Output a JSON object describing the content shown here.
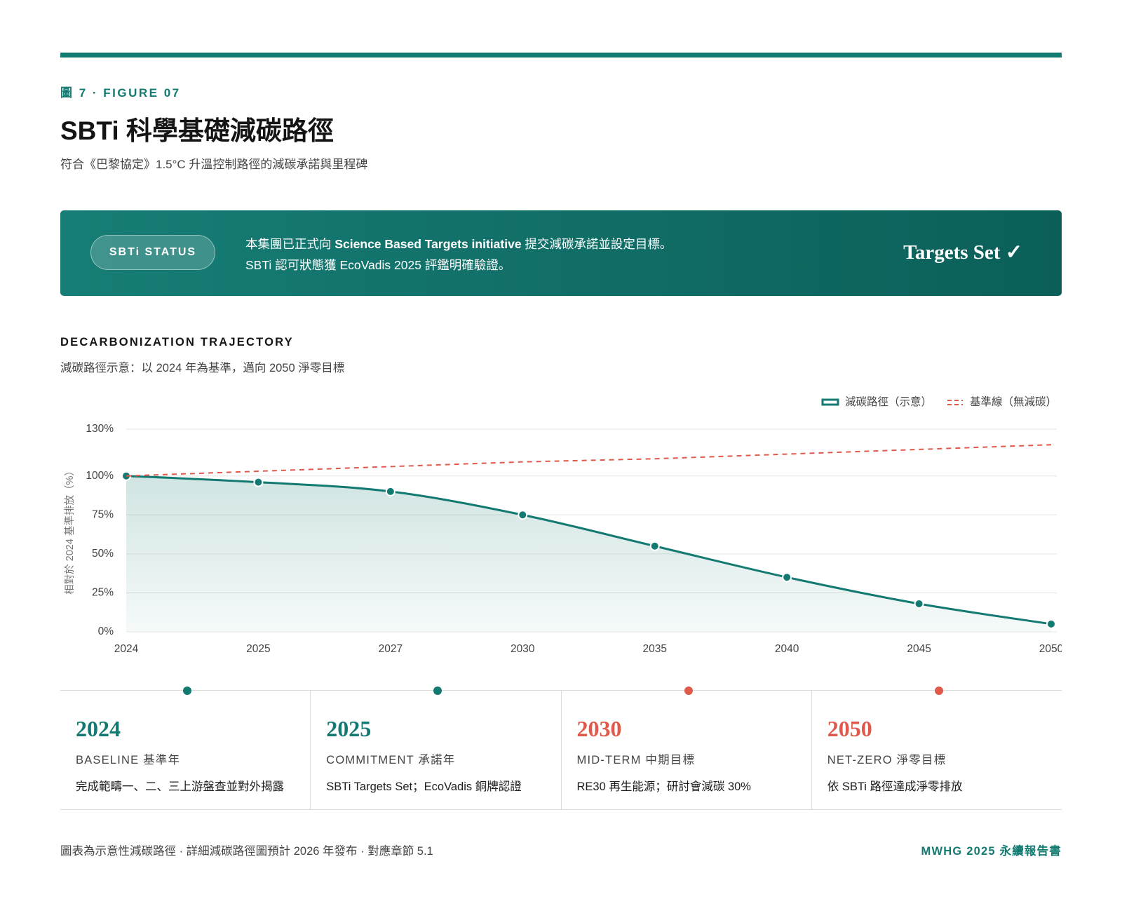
{
  "header": {
    "figure_label": "圖 7 · FIGURE 07",
    "title": "SBTi 科學基礎減碳路徑",
    "subtitle": "符合《巴黎協定》1.5°C 升溫控制路徑的減碳承諾與里程碑"
  },
  "banner": {
    "badge": "SBTi STATUS",
    "line1": [
      "本集團已正式向 ",
      "Science Based Targets initiative",
      " 提交減碳承諾並設定目標。"
    ],
    "line2": "SBTi 認可狀態獲 EcoVadis 2025 評鑑明確驗證。",
    "status": "Targets Set ✓"
  },
  "section": {
    "title": "DECARBONIZATION TRAJECTORY",
    "subtitle": "減碳路徑示意：以 2024 年為基準，邁向 2050 淨零目標"
  },
  "chart_data": {
    "type": "line",
    "y_label": "相對於 2024 基準排放（%）",
    "categories": [
      "2024",
      "2025",
      "2027",
      "2030",
      "2035",
      "2040",
      "2045",
      "2050"
    ],
    "series": [
      {
        "name": "減碳路徑（示意）",
        "color": "#137a72",
        "style": "solid",
        "values": [
          100,
          96,
          90,
          75,
          55,
          35,
          18,
          5
        ]
      },
      {
        "name": "基準線（無減碳）",
        "color": "#e05a4c",
        "style": "dashed",
        "values": [
          100,
          103,
          106,
          109,
          111,
          114,
          117,
          120
        ]
      }
    ],
    "ylim": [
      0,
      130
    ],
    "yticks": [
      {
        "value": 0,
        "label": "0%"
      },
      {
        "value": 25,
        "label": "25%"
      },
      {
        "value": 50,
        "label": "50%"
      },
      {
        "value": 75,
        "label": "75%"
      },
      {
        "value": 100,
        "label": "100%"
      },
      {
        "value": 130,
        "label": "130%"
      }
    ],
    "grid": true,
    "legend": "top-right"
  },
  "milestones": [
    {
      "year": "2024",
      "label": "BASELINE 基準年",
      "desc": "完成範疇一、二、三上游盤查並對外揭露",
      "color": "#137a72"
    },
    {
      "year": "2025",
      "label": "COMMITMENT 承諾年",
      "desc": "SBTi Targets Set；EcoVadis 銅牌認證",
      "color": "#137a72"
    },
    {
      "year": "2030",
      "label": "MID-TERM 中期目標",
      "desc": "RE30 再生能源；研討會減碳 30%",
      "color": "#e05a4c"
    },
    {
      "year": "2050",
      "label": "NET-ZERO 淨零目標",
      "desc": "依 SBTi 路徑達成淨零排放",
      "color": "#e05a4c"
    }
  ],
  "footer": {
    "note": "圖表為示意性減碳路徑 · 詳細減碳路徑圖預計 2026 年發布 · 對應章節 5.1",
    "brand": "MWHG 2025 永續報告書"
  }
}
